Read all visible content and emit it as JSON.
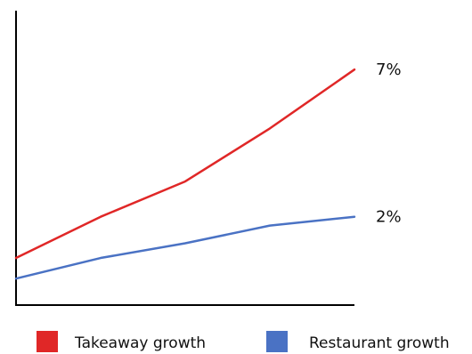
{
  "chart_data": {
    "type": "line",
    "x": [
      0,
      1,
      2,
      3,
      4
    ],
    "series": [
      {
        "name": "Takeaway growth",
        "values": [
          0.6,
          2.0,
          3.2,
          5.0,
          7.0
        ],
        "end_label": "7%",
        "color": "#e02727"
      },
      {
        "name": "Restaurant growth",
        "values": [
          -0.1,
          0.6,
          1.1,
          1.7,
          2.0
        ],
        "end_label": "2%",
        "color": "#4a72c4"
      }
    ],
    "xlim": [
      0,
      4
    ],
    "ylim": [
      -1.0,
      9.0
    ],
    "grid": false,
    "legend": "bottom",
    "x_ticks": false,
    "y_ticks": false
  }
}
